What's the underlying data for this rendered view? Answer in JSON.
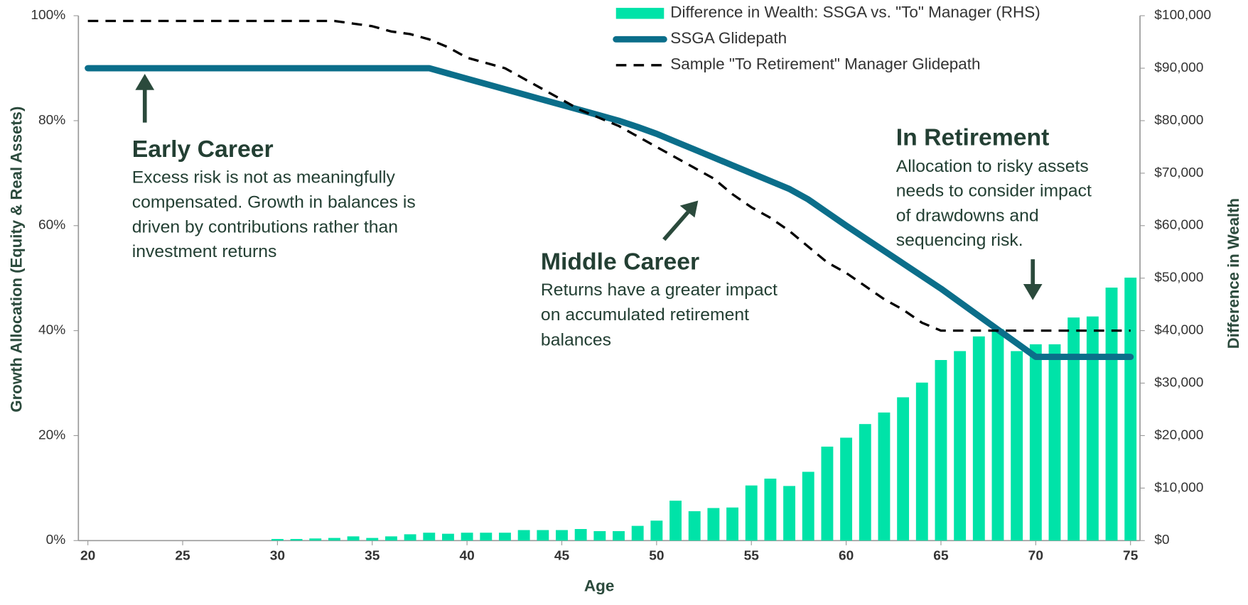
{
  "chart_data": {
    "type": "combo",
    "x": [
      20,
      21,
      22,
      23,
      24,
      25,
      26,
      27,
      28,
      29,
      30,
      31,
      32,
      33,
      34,
      35,
      36,
      37,
      38,
      39,
      40,
      41,
      42,
      43,
      44,
      45,
      46,
      47,
      48,
      49,
      50,
      51,
      52,
      53,
      54,
      55,
      56,
      57,
      58,
      59,
      60,
      61,
      62,
      63,
      64,
      65,
      66,
      67,
      68,
      69,
      70,
      71,
      72,
      73,
      74,
      75
    ],
    "xlim": [
      19.5,
      75.5
    ],
    "xticks": [
      20,
      25,
      30,
      35,
      40,
      45,
      50,
      55,
      60,
      65,
      70,
      75
    ],
    "x_label": "Age",
    "y_label": "Growth Allocation (Equity & Real Assets)",
    "y2_label": "Difference in Wealth",
    "ylim": [
      0,
      100
    ],
    "yticks": [
      {
        "value": 0,
        "label": "0%"
      },
      {
        "value": 20,
        "label": "20%"
      },
      {
        "value": 40,
        "label": "40%"
      },
      {
        "value": 60,
        "label": "60%"
      },
      {
        "value": 80,
        "label": "80%"
      },
      {
        "value": 100,
        "label": "100%"
      }
    ],
    "y2lim": [
      0,
      100000
    ],
    "y2ticks": [
      {
        "value": 0,
        "label": "$0"
      },
      {
        "value": 10000,
        "label": "$10,000"
      },
      {
        "value": 20000,
        "label": "$20,000"
      },
      {
        "value": 30000,
        "label": "$30,000"
      },
      {
        "value": 40000,
        "label": "$40,000"
      },
      {
        "value": 50000,
        "label": "$50,000"
      },
      {
        "value": 60000,
        "label": "$60,000"
      },
      {
        "value": 70000,
        "label": "$70,000"
      },
      {
        "value": 80000,
        "label": "$80,000"
      },
      {
        "value": 90000,
        "label": "$90,000"
      },
      {
        "value": 100000,
        "label": "$100,000"
      }
    ],
    "legend": "top-right",
    "series": [
      {
        "name": "Difference in Wealth: SSGA vs. \"To\" Manager (RHS)",
        "type": "bar",
        "axis": "y2",
        "color": "#00e3a8",
        "values": [
          0,
          0,
          0,
          0,
          0,
          0,
          0,
          0,
          0,
          0,
          300,
          300,
          400,
          500,
          800,
          500,
          800,
          1200,
          1500,
          1300,
          1500,
          1500,
          1500,
          2000,
          2000,
          2000,
          2200,
          1800,
          1800,
          2800,
          3800,
          7600,
          5600,
          6200,
          6300,
          10500,
          11800,
          10400,
          13100,
          17900,
          19600,
          22200,
          24400,
          27300,
          30100,
          34400,
          36100,
          38900,
          40300,
          36100,
          37400,
          37400,
          42500,
          42700,
          48200,
          50100
        ]
      },
      {
        "name": "SSGA Glidepath",
        "type": "line",
        "axis": "y",
        "color": "#0b6e8a",
        "style": "solid",
        "values": [
          90,
          90,
          90,
          90,
          90,
          90,
          90,
          90,
          90,
          90,
          90,
          90,
          90,
          90,
          90,
          90,
          90,
          90,
          90,
          89,
          88,
          87,
          86,
          85,
          84,
          83,
          82,
          81,
          80,
          78.8,
          77.5,
          76,
          74.5,
          73,
          71.5,
          70,
          68.5,
          67,
          65,
          62.5,
          60,
          57.6,
          55.2,
          52.8,
          50.4,
          48,
          45.4,
          42.8,
          40.2,
          37.6,
          35,
          35,
          35,
          35,
          35,
          35
        ]
      },
      {
        "name": "Sample \"To Retirement\" Manager Glidepath",
        "type": "line",
        "axis": "y",
        "color": "#000000",
        "style": "dashed",
        "values": [
          99,
          99,
          99,
          99,
          99,
          99,
          99,
          99,
          99,
          99,
          99,
          99,
          99,
          99,
          98.5,
          98,
          97,
          96.5,
          95.5,
          94,
          92,
          91,
          90,
          88,
          86,
          84,
          82,
          80.5,
          79,
          77,
          75,
          73,
          71,
          69,
          66,
          63.5,
          61.5,
          59,
          56,
          53,
          51,
          48.5,
          46,
          44,
          41.5,
          40,
          40,
          40,
          40,
          40,
          40,
          40,
          40,
          40,
          40,
          40
        ]
      }
    ],
    "annotations": [
      {
        "title": "Early Career",
        "text": [
          "Excess risk is not as meaningfully",
          "compensated. Growth in balances is",
          "driven by contributions rather than",
          "investment returns"
        ]
      },
      {
        "title": "Middle Career",
        "text": [
          "Returns have a greater impact",
          "on accumulated retirement",
          "balances"
        ]
      },
      {
        "title": "In Retirement",
        "text": [
          "Allocation to risky assets",
          "needs to consider impact",
          "of drawdowns and",
          "sequencing risk."
        ]
      }
    ]
  }
}
